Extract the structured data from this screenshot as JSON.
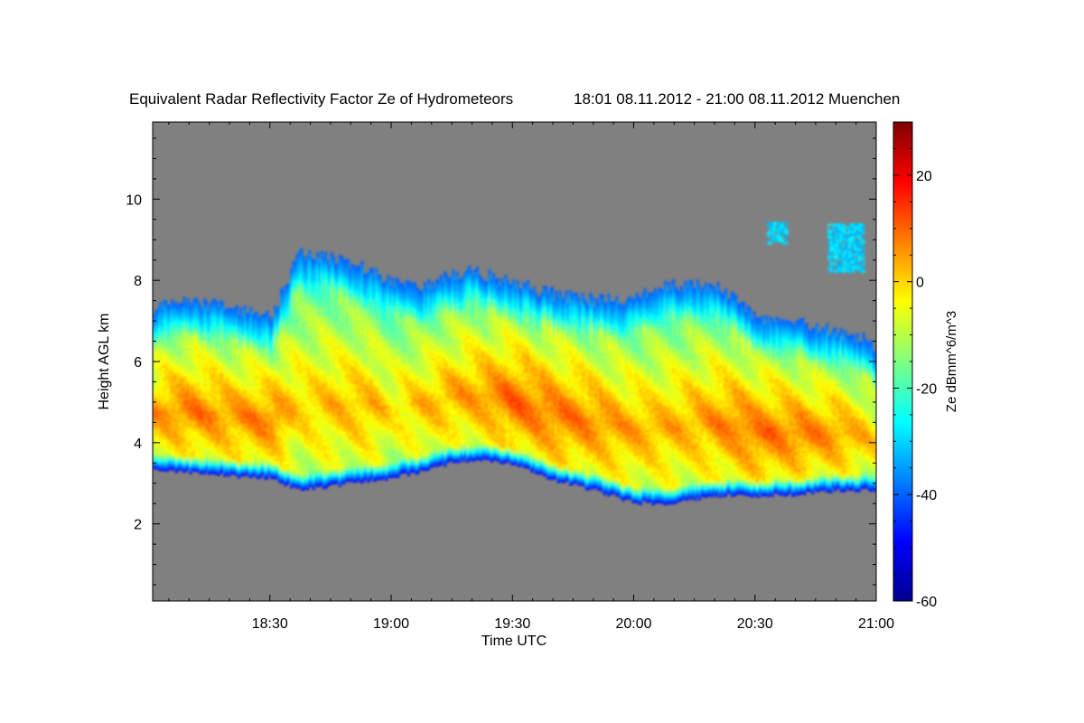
{
  "chart_data": {
    "type": "heatmap",
    "title": "Equivalent Radar Reflectivity Factor Ze of Hydrometeors",
    "subtitle": "18:01 08.11.2012 - 21:00 08.11.2012 Muenchen",
    "xlabel": "Time UTC",
    "ylabel": "Height AGL km",
    "x_range": [
      "18:01",
      "21:00"
    ],
    "x_ticks": [
      {
        "value": 30,
        "label": "18:30"
      },
      {
        "value": 60,
        "label": "19:00"
      },
      {
        "value": 90,
        "label": "19:30"
      },
      {
        "value": 120,
        "label": "20:00"
      },
      {
        "value": 150,
        "label": "20:30"
      },
      {
        "value": 180,
        "label": "21:00"
      }
    ],
    "ylim": [
      0.1,
      11.9
    ],
    "y_ticks": [
      {
        "value": 2,
        "label": "2"
      },
      {
        "value": 4,
        "label": "4"
      },
      {
        "value": 6,
        "label": "6"
      },
      {
        "value": 8,
        "label": "8"
      },
      {
        "value": 10,
        "label": "10"
      }
    ],
    "background_color": "#808080",
    "colorbar": {
      "label": "Ze dBmm^6/m^3",
      "range": [
        -60,
        30
      ],
      "colormap": "jet",
      "ticks": [
        {
          "value": -60,
          "label": "-60"
        },
        {
          "value": -40,
          "label": "-40"
        },
        {
          "value": -20,
          "label": "-20"
        },
        {
          "value": 0,
          "label": "0"
        },
        {
          "value": 20,
          "label": "20"
        }
      ]
    },
    "cloud_layer": {
      "comment_free_description_values": true,
      "time_min": [
        1,
        10,
        20,
        30,
        37,
        45,
        55,
        60,
        67,
        75,
        80,
        90,
        100,
        110,
        120,
        127,
        135,
        145,
        150,
        160,
        170,
        177,
        180
      ],
      "base_km": [
        3.35,
        3.3,
        3.2,
        3.15,
        2.85,
        2.95,
        3.1,
        3.15,
        3.3,
        3.55,
        3.6,
        3.5,
        3.1,
        2.85,
        2.55,
        2.5,
        2.65,
        2.75,
        2.7,
        2.75,
        2.85,
        2.85,
        2.85
      ],
      "top_km": [
        7.3,
        7.4,
        7.3,
        7.1,
        8.6,
        8.5,
        8.2,
        7.9,
        7.8,
        8.1,
        8.2,
        7.9,
        7.6,
        7.5,
        7.5,
        7.8,
        7.9,
        7.6,
        7.0,
        6.9,
        6.7,
        6.5,
        6.3
      ],
      "max_dbz": [
        5,
        8,
        6,
        8,
        0,
        2,
        3,
        -2,
        2,
        4,
        5,
        10,
        9,
        7,
        4,
        3,
        4,
        8,
        9,
        8,
        6,
        2,
        0
      ]
    },
    "upper_fragments": [
      {
        "t_start": 153,
        "t_end": 158,
        "h_bottom": 8.9,
        "h_top": 9.4
      },
      {
        "t_start": 168,
        "t_end": 177,
        "h_bottom": 8.2,
        "h_top": 9.4
      }
    ]
  }
}
